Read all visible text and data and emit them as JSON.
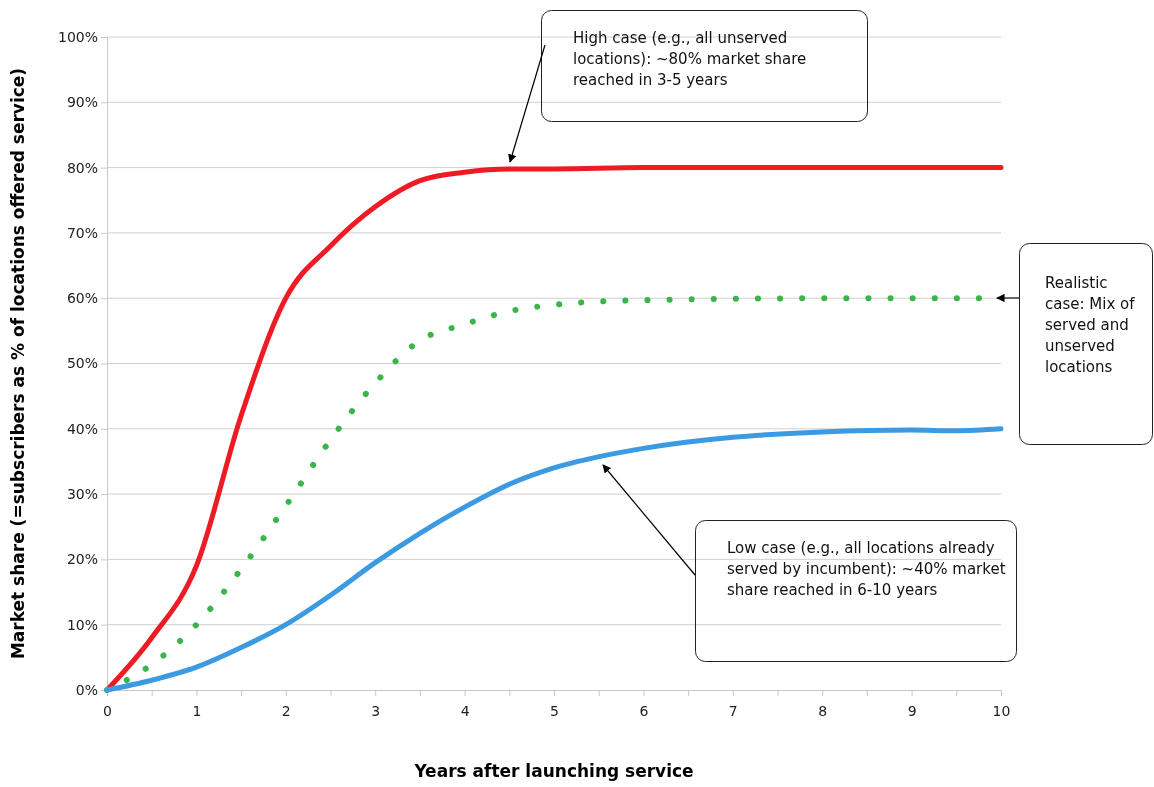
{
  "chart_data": {
    "type": "line",
    "xlabel": "Years after launching service",
    "ylabel": "Market share (=subscribers as % of locations offered service)",
    "xlim": [
      0,
      10
    ],
    "ylim": [
      0,
      100
    ],
    "xticks": [
      0,
      {
        "value": 0.5,
        "label": null
      },
      1,
      {
        "value": 1.5,
        "label": null
      },
      2,
      {
        "value": 2.5,
        "label": null
      },
      3,
      {
        "value": 3.5,
        "label": null
      },
      4,
      {
        "value": 4.5,
        "label": null
      },
      5,
      {
        "value": 5.5,
        "label": null
      },
      6,
      {
        "value": 6.5,
        "label": null
      },
      7,
      {
        "value": 7.5,
        "label": null
      },
      8,
      {
        "value": 8.5,
        "label": null
      },
      9,
      {
        "value": 9.5,
        "label": null
      },
      10
    ],
    "yticks": [
      {
        "value": 0,
        "label": "0%"
      },
      {
        "value": 10,
        "label": "10%"
      },
      {
        "value": 20,
        "label": "20%"
      },
      {
        "value": 30,
        "label": "30%"
      },
      {
        "value": 40,
        "label": "40%"
      },
      {
        "value": 50,
        "label": "50%"
      },
      {
        "value": 60,
        "label": "60%"
      },
      {
        "value": 70,
        "label": "70%"
      },
      {
        "value": 80,
        "label": "80%"
      },
      {
        "value": 90,
        "label": "90%"
      },
      {
        "value": 100,
        "label": "100%"
      }
    ],
    "grid": "y",
    "series": [
      {
        "color": "#ed1c24",
        "line_style": "solid",
        "x": [
          0,
          0.5,
          1,
          1.5,
          2,
          2.5,
          3,
          3.5,
          4,
          4.5,
          5,
          6,
          7,
          8,
          9,
          10
        ],
        "values": [
          0,
          8,
          19,
          42,
          60,
          68,
          74,
          78,
          79.3,
          79.8,
          79.8,
          80,
          80,
          80,
          80,
          80
        ]
      },
      {
        "color": "#39b54a",
        "line_style": "dotted",
        "x": [
          0,
          0.5,
          1,
          1.5,
          2,
          2.5,
          3,
          3.5,
          4,
          4.5,
          5,
          5.5,
          6,
          7,
          8,
          9,
          10
        ],
        "values": [
          0,
          3.9,
          10,
          18.5,
          28.2,
          38.3,
          47,
          53.5,
          56,
          58,
          59,
          59.5,
          59.7,
          59.9,
          60,
          60,
          60
        ]
      },
      {
        "color": "#3b9ae1",
        "line_style": "solid",
        "x": [
          0,
          0.5,
          1,
          1.5,
          2,
          2.5,
          3,
          3.5,
          4,
          4.5,
          5,
          5.6,
          6,
          7,
          8,
          9,
          9.5,
          10
        ],
        "values": [
          0,
          1.5,
          3.5,
          6.5,
          10,
          14.5,
          19.5,
          24,
          28,
          31.5,
          34,
          36,
          37,
          38.7,
          39.5,
          39.8,
          39.7,
          40
        ]
      }
    ],
    "annotations": [
      "High case (e.g., all unserved locations): ~80% market share reached in 3-5 years",
      "Realistic case: Mix of served and unserved locations",
      "Low case (e.g., all locations already served by incumbent): ~40% market share reached in 6-10 years"
    ]
  }
}
